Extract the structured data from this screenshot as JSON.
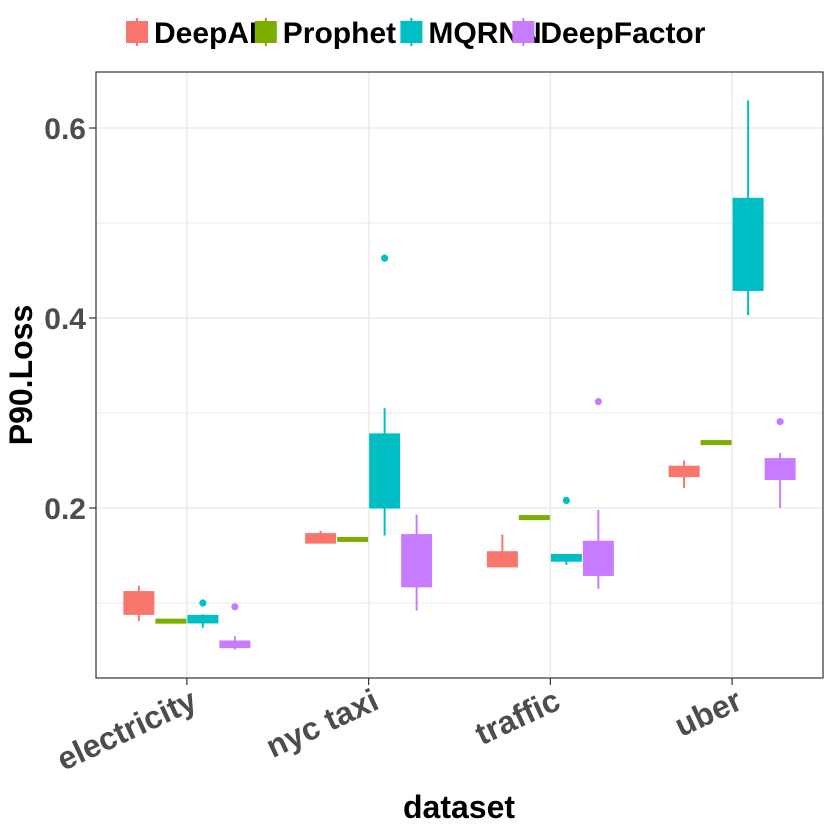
{
  "chart_data": {
    "type": "boxplot",
    "title": "",
    "xlabel": "dataset",
    "ylabel": "P90.Loss",
    "ylim": [
      0.02,
      0.66
    ],
    "yticks": [
      "0.2",
      "0.4",
      "0.6"
    ],
    "ytick_values": [
      0.2,
      0.4,
      0.6
    ],
    "categories": [
      "electricity",
      "nyc taxi",
      "traffic",
      "uber"
    ],
    "series": [
      {
        "name": "DeepAR",
        "color": "#F8766D",
        "boxes": [
          {
            "min": 0.081,
            "q1": 0.088,
            "median": 0.097,
            "q3": 0.112,
            "max": 0.118,
            "outliers": []
          },
          {
            "min": 0.163,
            "q1": 0.163,
            "median": 0.168,
            "q3": 0.173,
            "max": 0.176,
            "outliers": []
          },
          {
            "min": 0.138,
            "q1": 0.138,
            "median": 0.145,
            "q3": 0.154,
            "max": 0.172,
            "outliers": []
          },
          {
            "min": 0.221,
            "q1": 0.233,
            "median": 0.238,
            "q3": 0.244,
            "max": 0.25,
            "outliers": []
          }
        ]
      },
      {
        "name": "Prophet",
        "color": "#7CAE00",
        "boxes": [
          {
            "min": 0.082,
            "q1": 0.082,
            "median": 0.082,
            "q3": 0.083,
            "max": 0.083,
            "outliers": []
          },
          {
            "min": 0.168,
            "q1": 0.168,
            "median": 0.168,
            "q3": 0.169,
            "max": 0.169,
            "outliers": []
          },
          {
            "min": 0.191,
            "q1": 0.191,
            "median": 0.191,
            "q3": 0.192,
            "max": 0.192,
            "outliers": []
          },
          {
            "min": 0.27,
            "q1": 0.27,
            "median": 0.27,
            "q3": 0.271,
            "max": 0.271,
            "outliers": []
          }
        ]
      },
      {
        "name": "MQRNN",
        "color": "#00BFC4",
        "boxes": [
          {
            "min": 0.074,
            "q1": 0.079,
            "median": 0.083,
            "q3": 0.087,
            "max": 0.088,
            "outliers": [
              0.1
            ]
          },
          {
            "min": 0.171,
            "q1": 0.2,
            "median": 0.22,
            "q3": 0.278,
            "max": 0.305,
            "outliers": [
              0.463
            ]
          },
          {
            "min": 0.14,
            "q1": 0.144,
            "median": 0.147,
            "q3": 0.151,
            "max": 0.151,
            "outliers": [
              0.208
            ]
          },
          {
            "min": 0.403,
            "q1": 0.429,
            "median": 0.46,
            "q3": 0.526,
            "max": 0.629,
            "outliers": []
          }
        ]
      },
      {
        "name": "DeepFactor",
        "color": "#C77CFF",
        "boxes": [
          {
            "min": 0.051,
            "q1": 0.053,
            "median": 0.056,
            "q3": 0.06,
            "max": 0.065,
            "outliers": [
              0.096
            ]
          },
          {
            "min": 0.092,
            "q1": 0.117,
            "median": 0.14,
            "q3": 0.172,
            "max": 0.193,
            "outliers": []
          },
          {
            "min": 0.115,
            "q1": 0.129,
            "median": 0.15,
            "q3": 0.165,
            "max": 0.198,
            "outliers": [
              0.312
            ]
          },
          {
            "min": 0.2,
            "q1": 0.23,
            "median": 0.245,
            "q3": 0.252,
            "max": 0.258,
            "outliers": [
              0.291
            ]
          }
        ]
      }
    ],
    "legend_position": "top",
    "grid": true
  }
}
